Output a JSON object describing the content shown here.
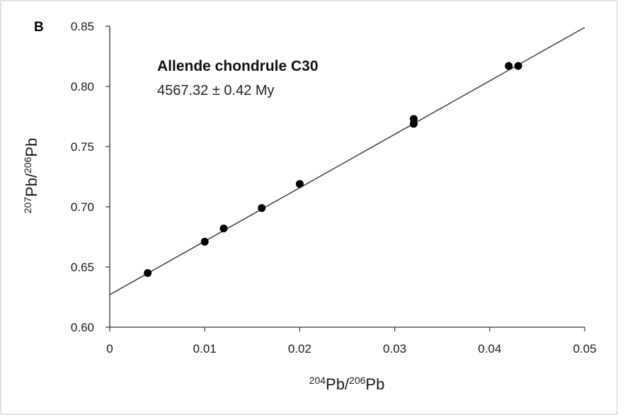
{
  "chart_data": {
    "type": "scatter",
    "panel_label": "B",
    "title": "Allende chondrule C30",
    "subtitle": "4567.32 ± 0.42 My",
    "xlabel": {
      "sup1": "204",
      "base1": "Pb/",
      "sup2": "206",
      "base2": "Pb"
    },
    "ylabel": {
      "sup1": "207",
      "base1": "Pb/",
      "sup2": "206",
      "base2": "Pb"
    },
    "xlim": [
      0,
      0.05
    ],
    "ylim": [
      0.6,
      0.85
    ],
    "x_ticks": [
      0,
      0.01,
      0.02,
      0.03,
      0.04,
      0.05
    ],
    "x_tick_labels": [
      "0",
      "0.01",
      "0.02",
      "0.03",
      "0.04",
      "0.05"
    ],
    "y_ticks": [
      0.6,
      0.65,
      0.7,
      0.75,
      0.8,
      0.85
    ],
    "y_tick_labels": [
      "0.60",
      "0.65",
      "0.70",
      "0.75",
      "0.80",
      "0.85"
    ],
    "grid": false,
    "points": [
      {
        "x": 0.004,
        "y": 0.645
      },
      {
        "x": 0.01,
        "y": 0.671
      },
      {
        "x": 0.012,
        "y": 0.682
      },
      {
        "x": 0.016,
        "y": 0.699
      },
      {
        "x": 0.02,
        "y": 0.719
      },
      {
        "x": 0.032,
        "y": 0.769
      },
      {
        "x": 0.032,
        "y": 0.773
      },
      {
        "x": 0.042,
        "y": 0.817
      },
      {
        "x": 0.043,
        "y": 0.817
      }
    ],
    "fit_line": {
      "x": [
        0,
        0.05
      ],
      "y": [
        0.627,
        0.849
      ]
    },
    "colors": {
      "points": "#000000",
      "line": "#333333",
      "axes": "#333333",
      "frame": "#d9d9d9"
    }
  }
}
